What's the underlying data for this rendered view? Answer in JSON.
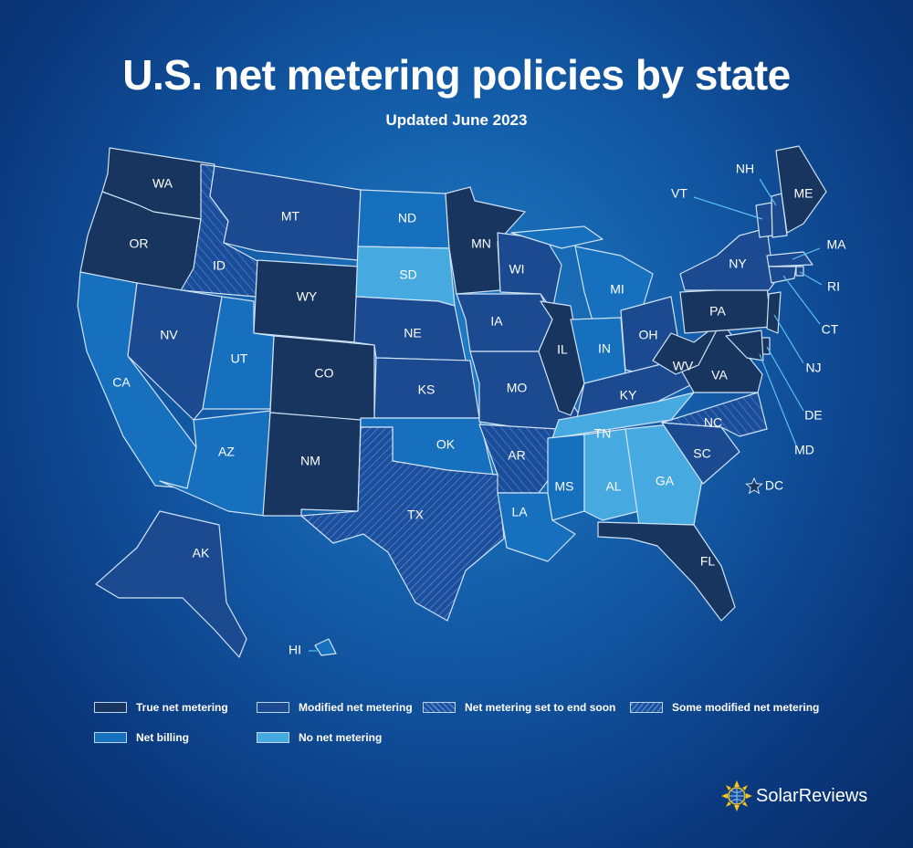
{
  "title": "U.S. net metering policies by state",
  "subtitle": "Updated June 2023",
  "colors": {
    "true": "#18355f",
    "modified": "#1b4a91",
    "endsoon": "#2356a8",
    "somemod": "#1f5aa8",
    "netbilling": "#1670bd",
    "none": "#46aae0",
    "outline": "#cfe3f7"
  },
  "legend": [
    {
      "key": "true",
      "label": "True net metering"
    },
    {
      "key": "modified",
      "label": "Modified net metering"
    },
    {
      "key": "endsoon",
      "label": "Net metering set to end soon"
    },
    {
      "key": "somemod",
      "label": "Some modified net metering"
    },
    {
      "key": "netbilling",
      "label": "Net billing"
    },
    {
      "key": "none",
      "label": "No net metering"
    }
  ],
  "states": [
    {
      "code": "WA",
      "policy": "true"
    },
    {
      "code": "OR",
      "policy": "true"
    },
    {
      "code": "CA",
      "policy": "netbilling"
    },
    {
      "code": "ID",
      "policy": "somemod"
    },
    {
      "code": "NV",
      "policy": "modified"
    },
    {
      "code": "MT",
      "policy": "modified"
    },
    {
      "code": "WY",
      "policy": "true"
    },
    {
      "code": "UT",
      "policy": "netbilling"
    },
    {
      "code": "AZ",
      "policy": "netbilling"
    },
    {
      "code": "CO",
      "policy": "true"
    },
    {
      "code": "NM",
      "policy": "true"
    },
    {
      "code": "ND",
      "policy": "netbilling"
    },
    {
      "code": "SD",
      "policy": "none"
    },
    {
      "code": "NE",
      "policy": "modified"
    },
    {
      "code": "KS",
      "policy": "modified"
    },
    {
      "code": "OK",
      "policy": "netbilling"
    },
    {
      "code": "TX",
      "policy": "endsoon"
    },
    {
      "code": "MN",
      "policy": "true"
    },
    {
      "code": "IA",
      "policy": "modified"
    },
    {
      "code": "MO",
      "policy": "modified"
    },
    {
      "code": "AR",
      "policy": "somemod"
    },
    {
      "code": "LA",
      "policy": "netbilling"
    },
    {
      "code": "WI",
      "policy": "modified"
    },
    {
      "code": "IL",
      "policy": "true"
    },
    {
      "code": "MI",
      "policy": "netbilling"
    },
    {
      "code": "IN",
      "policy": "netbilling"
    },
    {
      "code": "OH",
      "policy": "modified"
    },
    {
      "code": "KY",
      "policy": "modified"
    },
    {
      "code": "TN",
      "policy": "none"
    },
    {
      "code": "MS",
      "policy": "netbilling"
    },
    {
      "code": "AL",
      "policy": "none"
    },
    {
      "code": "GA",
      "policy": "none"
    },
    {
      "code": "FL",
      "policy": "true"
    },
    {
      "code": "SC",
      "policy": "modified"
    },
    {
      "code": "NC",
      "policy": "somemod"
    },
    {
      "code": "VA",
      "policy": "true"
    },
    {
      "code": "WV",
      "policy": "true"
    },
    {
      "code": "PA",
      "policy": "true"
    },
    {
      "code": "NY",
      "policy": "modified"
    },
    {
      "code": "VT",
      "policy": "modified"
    },
    {
      "code": "NH",
      "policy": "modified"
    },
    {
      "code": "ME",
      "policy": "true"
    },
    {
      "code": "MA",
      "policy": "modified"
    },
    {
      "code": "RI",
      "policy": "modified"
    },
    {
      "code": "CT",
      "policy": "modified"
    },
    {
      "code": "NJ",
      "policy": "true"
    },
    {
      "code": "DE",
      "policy": "true"
    },
    {
      "code": "MD",
      "policy": "true"
    },
    {
      "code": "DC",
      "policy": "true"
    },
    {
      "code": "AK",
      "policy": "modified"
    },
    {
      "code": "HI",
      "policy": "netbilling"
    }
  ],
  "brand": "SolarReviews"
}
